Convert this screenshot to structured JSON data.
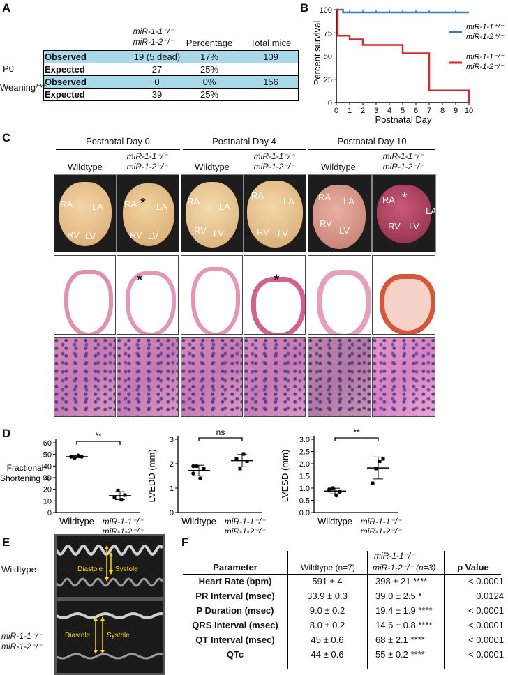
{
  "panels": {
    "a": "A",
    "b": "B",
    "c": "C",
    "d": "D",
    "e": "E",
    "f": "F"
  },
  "panel_a": {
    "header": {
      "genotype_line1": "miR-1-1⁻/⁻",
      "genotype_line2": "miR-1-2⁻/⁻",
      "percentage": "Percentage",
      "total": "Total mice"
    },
    "groups": [
      {
        "name": "P0",
        "rows": [
          {
            "label": "Observed",
            "count": "19 (5 dead)",
            "pct": "17%",
            "total": "109"
          },
          {
            "label": "Expected",
            "count": "27",
            "pct": "25%",
            "total": ""
          }
        ]
      },
      {
        "name": "Weaning***",
        "rows": [
          {
            "label": "Observed",
            "count": "0",
            "pct": "0%",
            "total": "156"
          },
          {
            "label": "Expected",
            "count": "39",
            "pct": "25%",
            "total": ""
          }
        ]
      }
    ]
  },
  "chart_data": {
    "type": "line",
    "title": "",
    "xlabel": "Postnatal Day",
    "ylabel": "Percent survival",
    "xlim": [
      0,
      10
    ],
    "ylim": [
      0,
      100
    ],
    "xticks": [
      0,
      1,
      2,
      3,
      4,
      5,
      6,
      7,
      8,
      9,
      10
    ],
    "yticks": [
      0,
      25,
      50,
      75,
      100
    ],
    "series": [
      {
        "name": "miR-1-1⁺/⁻ miR-1-2⁺/⁻",
        "color": "#3a78c2",
        "x": [
          0,
          0.5,
          0.5,
          10
        ],
        "y": [
          100,
          100,
          97,
          97
        ],
        "censor_x": [
          1,
          2,
          3,
          4,
          5,
          6,
          7,
          9
        ]
      },
      {
        "name": "miR-1-1⁻/⁻ miR-1-2⁻/⁻",
        "color": "#d9262c",
        "x": [
          0,
          0.1,
          0.1,
          1,
          1,
          2,
          2,
          5,
          5,
          7,
          7,
          10,
          10
        ],
        "y": [
          100,
          100,
          72,
          72,
          68,
          68,
          62,
          62,
          53,
          53,
          13,
          13,
          0
        ]
      }
    ],
    "legend": [
      {
        "line1": "miR-1-1⁺/⁻",
        "line2": "miR-1-2⁺/⁻",
        "color": "#3a78c2"
      },
      {
        "line1": "miR-1-1⁻/⁻",
        "line2": "miR-1-2⁻/⁻",
        "color": "#d9262c"
      }
    ]
  },
  "panel_c": {
    "timepoints": [
      "Postnatal Day 0",
      "Postnatal Day 4",
      "Postnatal Day 10"
    ],
    "wildtype": "Wildtype",
    "mutant_line1": "miR-1-1⁻/⁻",
    "mutant_line2": "miR-1-2⁻/⁻",
    "chambers": {
      "ra": "RA",
      "la": "LA",
      "rv": "RV",
      "lv": "LV"
    },
    "star": "*"
  },
  "panel_d": {
    "plots": [
      {
        "ylabel_line1": "Fractional",
        "ylabel_line2": "Shortening %",
        "yticks": [
          "60",
          "50",
          "40",
          "30",
          "20",
          "10",
          "0"
        ],
        "sig": "**",
        "wt_values": [
          48,
          47,
          49,
          48
        ],
        "mut_values": [
          13,
          19,
          11,
          15
        ],
        "ymax": 60
      },
      {
        "ylabel": "LVEDD (mm)",
        "yticks": [
          "3",
          "2",
          "1",
          "0"
        ],
        "sig": "ns",
        "wt_values": [
          1.6,
          1.9,
          1.4,
          1.8,
          1.9
        ],
        "mut_values": [
          2.2,
          1.8,
          2.4,
          2.1
        ],
        "ymax": 3
      },
      {
        "ylabel": "LVESD (mm)",
        "yticks": [
          "3.0",
          "2.5",
          "2.0",
          "1.5",
          "1.0",
          "0.5",
          "0.0"
        ],
        "sig": "**",
        "wt_values": [
          0.9,
          1.0,
          0.7,
          0.85,
          0.95
        ],
        "mut_values": [
          1.2,
          1.8,
          2.1,
          2.2
        ],
        "ymax": 3.0
      }
    ],
    "xlabels": {
      "wt": "Wildtype",
      "mut_line1": "miR-1-1⁻/⁻",
      "mut_line2": "miR-1-2⁻/⁻"
    }
  },
  "panel_e": {
    "wildtype": "Wildtype",
    "mutant_line1": "miR-1-1⁻/⁻",
    "mutant_line2": "miR-1-2⁻/⁻",
    "diastole": "Diastole",
    "systole": "Systole"
  },
  "panel_f": {
    "header": {
      "parameter": "Parameter",
      "wildtype": "Wildtype (n=7)",
      "mut_line1": "miR-1-1⁻/⁻",
      "mut_line2": "miR-1-2⁻/⁻ (n=3)",
      "pvalue": "p Value"
    },
    "rows": [
      {
        "param": "Heart Rate (bpm)",
        "wt": "591 ± 4",
        "mut": "398 ± 21 ****",
        "p": "< 0.0001"
      },
      {
        "param": "PR Interval (msec)",
        "wt": "33.9 ± 0.3",
        "mut": "39.0 ± 2.5 *",
        "p": "0.0124"
      },
      {
        "param": "P Duration (msec)",
        "wt": "9.0 ± 0.2",
        "mut": "19.4 ± 1.9 ****",
        "p": "< 0.0001"
      },
      {
        "param": "QRS Interval (msec)",
        "wt": "8.0 ± 0.2",
        "mut": "14.6 ± 0.8 ****",
        "p": "< 0.0001"
      },
      {
        "param": "QT Interval (msec)",
        "wt": "45 ± 0.6",
        "mut": "68 ± 2.1 ****",
        "p": "< 0.0001"
      },
      {
        "param": "QTc",
        "wt": "44 ± 0.6",
        "mut": "55  ± 0.2 ****",
        "p": "< 0.0001"
      }
    ]
  }
}
